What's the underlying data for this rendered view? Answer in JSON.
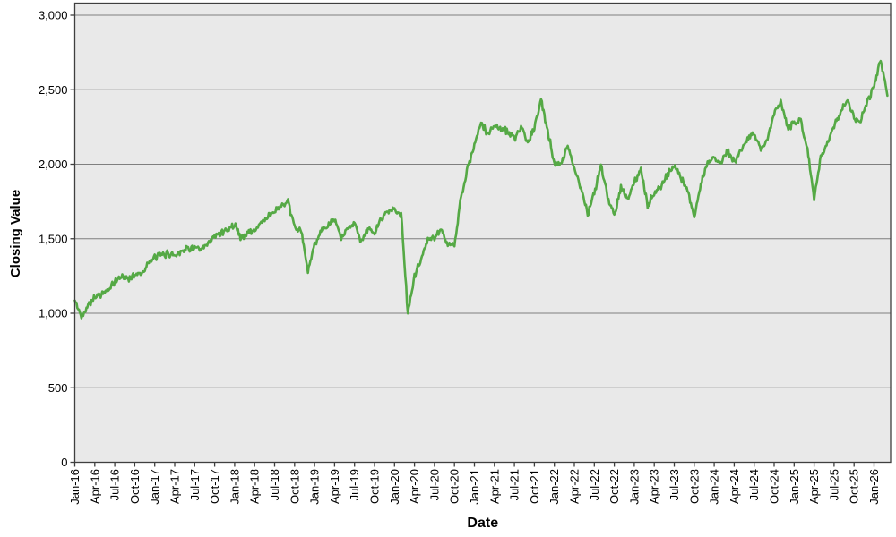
{
  "chart_data": {
    "type": "line",
    "title": "",
    "xlabel": "Date",
    "ylabel": "Closing Value",
    "ylim": [
      0,
      3083
    ],
    "grid": "horizontal",
    "legend": "none",
    "y_ticks": [
      0,
      500,
      1000,
      1500,
      2000,
      2500,
      3000
    ],
    "y_tick_labels": [
      "0",
      "500",
      "1,000",
      "1,500",
      "2,000",
      "2,500",
      "3,000"
    ],
    "x_tick_step_months": 3,
    "x_tick_labels": [
      "Jan-16",
      "Apr-16",
      "Jul-16",
      "Oct-16",
      "Jan-17",
      "Apr-17",
      "Jul-17",
      "Oct-17",
      "Jan-18",
      "Apr-18",
      "Jul-18",
      "Oct-18",
      "Jan-19",
      "Apr-19",
      "Jul-19",
      "Oct-19",
      "Jan-20",
      "Apr-20",
      "Jul-20",
      "Oct-20",
      "Jan-21",
      "Apr-21",
      "Jul-21",
      "Oct-21",
      "Jan-22",
      "Apr-22",
      "Jul-22",
      "Oct-22",
      "Jan-23",
      "Apr-23",
      "Jul-23",
      "Oct-23",
      "Jan-24",
      "Apr-24",
      "Jul-24",
      "Oct-24",
      "Jan-25",
      "Apr-25",
      "Jul-25",
      "Oct-25",
      "Jan-26"
    ],
    "x_start": "Jan-16",
    "x_resolution": "monthly anchor values of a daily closing-value line (Jan-2016 through Mar-2026)",
    "series": [
      {
        "name": "Closing Value",
        "color": "#55a945",
        "monthly_values": [
          1085,
          975,
          1060,
          1110,
          1130,
          1150,
          1210,
          1250,
          1230,
          1260,
          1270,
          1330,
          1375,
          1390,
          1400,
          1390,
          1420,
          1435,
          1440,
          1420,
          1465,
          1515,
          1545,
          1560,
          1600,
          1500,
          1545,
          1555,
          1610,
          1650,
          1685,
          1720,
          1740,
          1580,
          1550,
          1280,
          1460,
          1560,
          1580,
          1630,
          1505,
          1565,
          1620,
          1470,
          1570,
          1530,
          1640,
          1685,
          1700,
          1660,
          1000,
          1250,
          1360,
          1500,
          1500,
          1560,
          1470,
          1450,
          1780,
          1980,
          2120,
          2280,
          2200,
          2260,
          2240,
          2220,
          2170,
          2240,
          2150,
          2240,
          2430,
          2230,
          2000,
          2010,
          2120,
          1980,
          1840,
          1660,
          1810,
          1990,
          1790,
          1660,
          1850,
          1760,
          1880,
          1960,
          1720,
          1810,
          1850,
          1930,
          2000,
          1910,
          1830,
          1640,
          1870,
          2000,
          2050,
          2010,
          2090,
          2010,
          2090,
          2180,
          2210,
          2090,
          2170,
          2340,
          2420,
          2250,
          2270,
          2300,
          2090,
          1780,
          2050,
          2150,
          2250,
          2350,
          2440,
          2310,
          2290,
          2420,
          2530,
          2700,
          2460
        ]
      }
    ],
    "appearance": {
      "plot_bg": "#e9e9e9",
      "grid_color": "#7f7f7f",
      "axis_color": "#3f3f3f",
      "text_color": "#000000",
      "line_width": 2.6,
      "tick_font_size": 13,
      "title_font_size": 15,
      "daily_noise_amplitude": 20,
      "points_per_month": 8,
      "noise_seed": 42
    }
  }
}
